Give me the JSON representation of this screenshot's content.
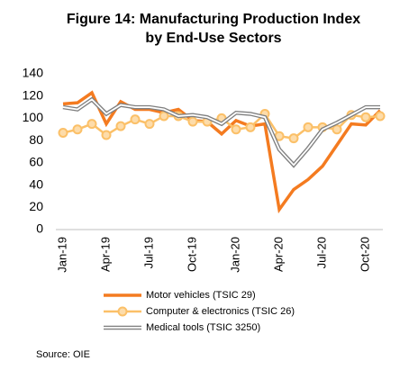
{
  "chart_data": {
    "type": "line",
    "title": [
      "Figure 14: Manufacturing Production Index",
      "by End-Use Sectors"
    ],
    "categories": [
      "Jan-19",
      null,
      null,
      "Apr-19",
      null,
      null,
      "Jul-19",
      null,
      null,
      "Oct-19",
      null,
      null,
      "Jan-20",
      null,
      null,
      "Apr-20",
      null,
      null,
      "Jul-20",
      null,
      null,
      "Oct-20",
      null
    ],
    "series": [
      {
        "name": "Motor vehicles (TSIC 29)",
        "color": "#f47b20",
        "style": "line",
        "values": [
          113,
          114,
          123,
          95,
          115,
          108,
          108,
          105,
          108,
          98,
          97,
          86,
          98,
          93,
          95,
          18,
          36,
          45,
          57,
          76,
          95,
          94,
          107
        ]
      },
      {
        "name": "Computer & electronics (TSIC 26)",
        "color": "#fbc068",
        "style": "marker",
        "values": [
          87,
          90,
          95,
          85,
          93,
          99,
          95,
          102,
          102,
          97,
          97,
          100,
          90,
          92,
          104,
          84,
          82,
          92,
          92,
          90,
          103,
          101,
          102
        ]
      },
      {
        "name": "Medical tools (TSIC 3250)",
        "color": "#808080",
        "style": "double",
        "values": [
          110,
          108,
          117,
          104,
          112,
          110,
          110,
          108,
          102,
          103,
          101,
          95,
          105,
          104,
          101,
          72,
          58,
          73,
          90,
          96,
          103,
          110,
          110
        ]
      }
    ],
    "ylim": [
      0,
      140
    ],
    "yticks": [
      0,
      20,
      40,
      60,
      80,
      100,
      120,
      140
    ],
    "grid": false,
    "source": "Source: OIE"
  }
}
